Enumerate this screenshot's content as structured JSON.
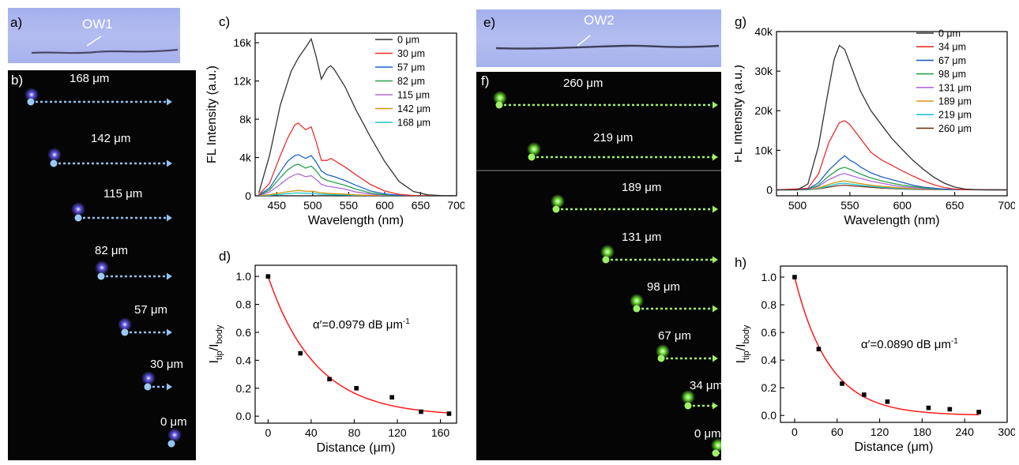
{
  "panels": {
    "a": "a)",
    "b": "b)",
    "c": "c)",
    "d": "d)",
    "e": "e)",
    "f": "f)",
    "g": "g)",
    "h": "h)"
  },
  "photos": {
    "ow1_label": "OW1",
    "ow2_label": "OW2"
  },
  "waveguide1": {
    "distances": [
      "168 μm",
      "142 μm",
      "115 μm",
      "82 μm",
      "57 μm",
      "30 μm",
      "0 μm"
    ],
    "colors": {
      "background": "#050506",
      "arrow": "#8fc3f0",
      "spot": "#9fcbf5"
    }
  },
  "waveguide2": {
    "distances": [
      "260 μm",
      "219 μm",
      "189 μm",
      "131 μm",
      "98 μm",
      "67 μm",
      "34 μm",
      "0 μm"
    ],
    "colors": {
      "background": "#050506",
      "arrow": "#9ef26a",
      "spot": "#9ef26a"
    }
  },
  "chart_data": [
    {
      "panel": "c",
      "type": "line",
      "xlabel": "Wavelength (nm)",
      "ylabel": "FL Intensity (a.u.)",
      "xlim": [
        420,
        700
      ],
      "ylim": [
        0,
        17000
      ],
      "xticks": [
        "450",
        "500",
        "550",
        "600",
        "650",
        "700"
      ],
      "xtick_values": [
        450,
        500,
        550,
        600,
        650,
        700
      ],
      "yticks": [
        "0",
        "4k",
        "8k",
        "12k",
        "16k"
      ],
      "ytick_values": [
        0,
        4000,
        8000,
        12000,
        16000
      ],
      "legend_position": "top-right",
      "grid": false,
      "series": [
        {
          "name": "0 μm",
          "color": "#333333",
          "x": [
            425,
            440,
            455,
            470,
            480,
            490,
            498,
            505,
            512,
            520,
            525,
            530,
            545,
            560,
            580,
            600,
            620,
            640,
            660,
            680,
            700
          ],
          "y": [
            300,
            4200,
            9500,
            13000,
            14400,
            15500,
            16400,
            14500,
            12200,
            13300,
            13600,
            13200,
            11400,
            9000,
            6200,
            3600,
            1500,
            450,
            100,
            20,
            0
          ]
        },
        {
          "name": "30 μm",
          "color": "#e8302e",
          "x": [
            425,
            440,
            455,
            465,
            475,
            480,
            490,
            498,
            505,
            512,
            520,
            525,
            530,
            545,
            560,
            580,
            600,
            620,
            640,
            660,
            700
          ],
          "y": [
            100,
            1300,
            4200,
            6000,
            7400,
            7600,
            6900,
            7200,
            5600,
            3700,
            3700,
            3900,
            3700,
            3000,
            2200,
            1200,
            500,
            150,
            30,
            0,
            0
          ]
        },
        {
          "name": "57 μm",
          "color": "#1f63c7",
          "x": [
            425,
            440,
            455,
            465,
            475,
            480,
            490,
            498,
            505,
            512,
            520,
            530,
            545,
            560,
            580,
            600,
            620,
            640,
            700
          ],
          "y": [
            60,
            800,
            2500,
            3600,
            4200,
            4300,
            3900,
            4200,
            3500,
            2600,
            2200,
            2000,
            1600,
            1100,
            500,
            200,
            60,
            10,
            0
          ]
        },
        {
          "name": "82 μm",
          "color": "#27a34a",
          "x": [
            425,
            440,
            455,
            465,
            475,
            480,
            490,
            498,
            505,
            512,
            520,
            530,
            545,
            560,
            580,
            600,
            620,
            700
          ],
          "y": [
            40,
            600,
            1900,
            2700,
            3200,
            3300,
            2900,
            3100,
            2600,
            1900,
            1600,
            1400,
            1100,
            700,
            300,
            100,
            30,
            0
          ]
        },
        {
          "name": "115 μm",
          "color": "#b06ad9",
          "x": [
            425,
            440,
            455,
            465,
            475,
            480,
            490,
            498,
            505,
            512,
            520,
            530,
            545,
            560,
            580,
            600,
            620,
            700
          ],
          "y": [
            20,
            400,
            1200,
            1800,
            2200,
            2300,
            2000,
            2100,
            1700,
            1200,
            1000,
            900,
            700,
            400,
            180,
            60,
            20,
            0
          ]
        },
        {
          "name": "142 μm",
          "color": "#d39514",
          "x": [
            425,
            440,
            455,
            465,
            475,
            480,
            490,
            500,
            510,
            520,
            530,
            545,
            560,
            580,
            600,
            620,
            700
          ],
          "y": [
            10,
            120,
            300,
            420,
            520,
            560,
            480,
            470,
            330,
            260,
            220,
            170,
            100,
            40,
            15,
            5,
            0
          ]
        },
        {
          "name": "168 μm",
          "color": "#1fc6cf",
          "x": [
            425,
            440,
            455,
            465,
            475,
            480,
            490,
            500,
            510,
            520,
            530,
            545,
            560,
            580,
            600,
            700
          ],
          "y": [
            5,
            60,
            150,
            220,
            280,
            300,
            260,
            250,
            180,
            140,
            110,
            80,
            50,
            20,
            5,
            0
          ]
        }
      ]
    },
    {
      "panel": "d",
      "type": "scatter",
      "xlabel": "Distance (μm)",
      "ylabel_main": "I",
      "ylabel_sub1": "tip",
      "ylabel_mid": "/I",
      "ylabel_sub2": "body",
      "xlim": [
        -12,
        175
      ],
      "ylim": [
        -0.05,
        1.08
      ],
      "xticks": [
        "0",
        "40",
        "80",
        "120",
        "160"
      ],
      "xtick_values": [
        0,
        40,
        80,
        120,
        160
      ],
      "yticks": [
        "0.0",
        "0.2",
        "0.4",
        "0.6",
        "0.8",
        "1.0"
      ],
      "ytick_values": [
        0.0,
        0.2,
        0.4,
        0.6,
        0.8,
        1.0
      ],
      "annotation_main": "α′=0.0979 dB μm",
      "annotation_sup": "-1",
      "points": {
        "x": [
          0,
          30,
          57,
          82,
          115,
          142,
          168
        ],
        "y": [
          1.0,
          0.45,
          0.265,
          0.2,
          0.135,
          0.032,
          0.018
        ]
      },
      "fit": {
        "type": "exponential",
        "y0": 0.0,
        "a": 1.0,
        "k": 0.0225,
        "color": "#ff1a1a"
      }
    },
    {
      "panel": "g",
      "type": "line",
      "xlabel": "Wavelength (nm)",
      "ylabel": "FL Intensity (a.u.)",
      "xlim": [
        480,
        700
      ],
      "ylim": [
        -1500,
        40000
      ],
      "xticks": [
        "500",
        "550",
        "600",
        "650",
        "700"
      ],
      "xtick_values": [
        500,
        550,
        600,
        650,
        700
      ],
      "yticks": [
        "0",
        "10k",
        "20k",
        "30k",
        "40k"
      ],
      "ytick_values": [
        0,
        10000,
        20000,
        30000,
        40000
      ],
      "legend_position": "top-right",
      "grid": false,
      "series": [
        {
          "name": "0 μm",
          "color": "#333333",
          "x": [
            480,
            500,
            510,
            520,
            530,
            535,
            540,
            545,
            550,
            560,
            570,
            580,
            590,
            600,
            610,
            620,
            630,
            640,
            650,
            660,
            670,
            680,
            700
          ],
          "y": [
            0,
            0,
            1500,
            11000,
            26000,
            33000,
            36500,
            35500,
            32000,
            25000,
            20000,
            16500,
            13000,
            10200,
            7500,
            5200,
            3200,
            1700,
            700,
            200,
            50,
            0,
            0
          ]
        },
        {
          "name": "34 μm",
          "color": "#e8302e",
          "x": [
            480,
            510,
            520,
            530,
            540,
            545,
            550,
            560,
            570,
            580,
            590,
            600,
            610,
            620,
            630,
            640,
            650,
            660,
            700
          ],
          "y": [
            0,
            400,
            4000,
            12000,
            17000,
            17500,
            16500,
            13000,
            9500,
            7600,
            6200,
            4800,
            3500,
            2300,
            1300,
            600,
            200,
            50,
            0
          ]
        },
        {
          "name": "67 μm",
          "color": "#1f63c7",
          "x": [
            480,
            510,
            520,
            530,
            540,
            545,
            550,
            555,
            560,
            570,
            580,
            590,
            600,
            610,
            620,
            640,
            660,
            700
          ],
          "y": [
            0,
            200,
            1800,
            5000,
            7500,
            8600,
            7500,
            6800,
            5800,
            4300,
            3300,
            2600,
            1900,
            1200,
            700,
            200,
            30,
            0
          ]
        },
        {
          "name": "98 μm",
          "color": "#27a34a",
          "x": [
            480,
            510,
            520,
            530,
            540,
            545,
            550,
            560,
            570,
            580,
            590,
            600,
            620,
            640,
            700
          ],
          "y": [
            0,
            100,
            1200,
            3500,
            5300,
            5700,
            5200,
            4000,
            3000,
            2300,
            1700,
            1200,
            500,
            100,
            0
          ]
        },
        {
          "name": "131 μm",
          "color": "#b06ad9",
          "x": [
            480,
            510,
            520,
            530,
            540,
            545,
            550,
            560,
            570,
            580,
            590,
            600,
            620,
            640,
            700
          ],
          "y": [
            0,
            80,
            900,
            2600,
            3800,
            4100,
            3700,
            2900,
            2200,
            1700,
            1200,
            800,
            300,
            60,
            0
          ]
        },
        {
          "name": "189 μm",
          "color": "#d39514",
          "x": [
            480,
            510,
            520,
            530,
            540,
            545,
            550,
            560,
            570,
            580,
            600,
            620,
            640,
            700
          ],
          "y": [
            0,
            50,
            500,
            1400,
            2100,
            2300,
            2000,
            1600,
            1200,
            900,
            450,
            150,
            30,
            0
          ]
        },
        {
          "name": "219 μm",
          "color": "#1fc6cf",
          "x": [
            480,
            510,
            520,
            530,
            540,
            545,
            550,
            560,
            570,
            580,
            600,
            620,
            700
          ],
          "y": [
            0,
            30,
            350,
            1000,
            1600,
            1700,
            1500,
            1200,
            900,
            650,
            300,
            100,
            0
          ]
        },
        {
          "name": "260 μm",
          "color": "#6b3a1e",
          "x": [
            480,
            510,
            520,
            530,
            540,
            545,
            550,
            560,
            570,
            580,
            600,
            620,
            700
          ],
          "y": [
            0,
            20,
            250,
            700,
            1100,
            1200,
            1050,
            850,
            650,
            450,
            200,
            60,
            0
          ]
        }
      ]
    },
    {
      "panel": "h",
      "type": "scatter",
      "xlabel": "Distance (μm)",
      "ylabel_main": "I",
      "ylabel_sub1": "tip",
      "ylabel_mid": "/I",
      "ylabel_sub2": "body",
      "xlim": [
        -20,
        300
      ],
      "ylim": [
        -0.05,
        1.08
      ],
      "xticks": [
        "0",
        "60",
        "120",
        "180",
        "240",
        "300"
      ],
      "xtick_values": [
        0,
        60,
        120,
        180,
        240,
        300
      ],
      "yticks": [
        "0.0",
        "0.2",
        "0.4",
        "0.6",
        "0.8",
        "1.0"
      ],
      "ytick_values": [
        0.0,
        0.2,
        0.4,
        0.6,
        0.8,
        1.0
      ],
      "annotation_main": "α′=0.0890 dB μm",
      "annotation_sup": "-1",
      "points": {
        "x": [
          0,
          34,
          67,
          98,
          131,
          189,
          219,
          260
        ],
        "y": [
          1.0,
          0.48,
          0.23,
          0.15,
          0.1,
          0.055,
          0.045,
          0.025
        ]
      },
      "fit": {
        "type": "exponential",
        "y0": 0.0,
        "a": 1.0,
        "k": 0.0205,
        "color": "#ff1a1a"
      }
    }
  ]
}
